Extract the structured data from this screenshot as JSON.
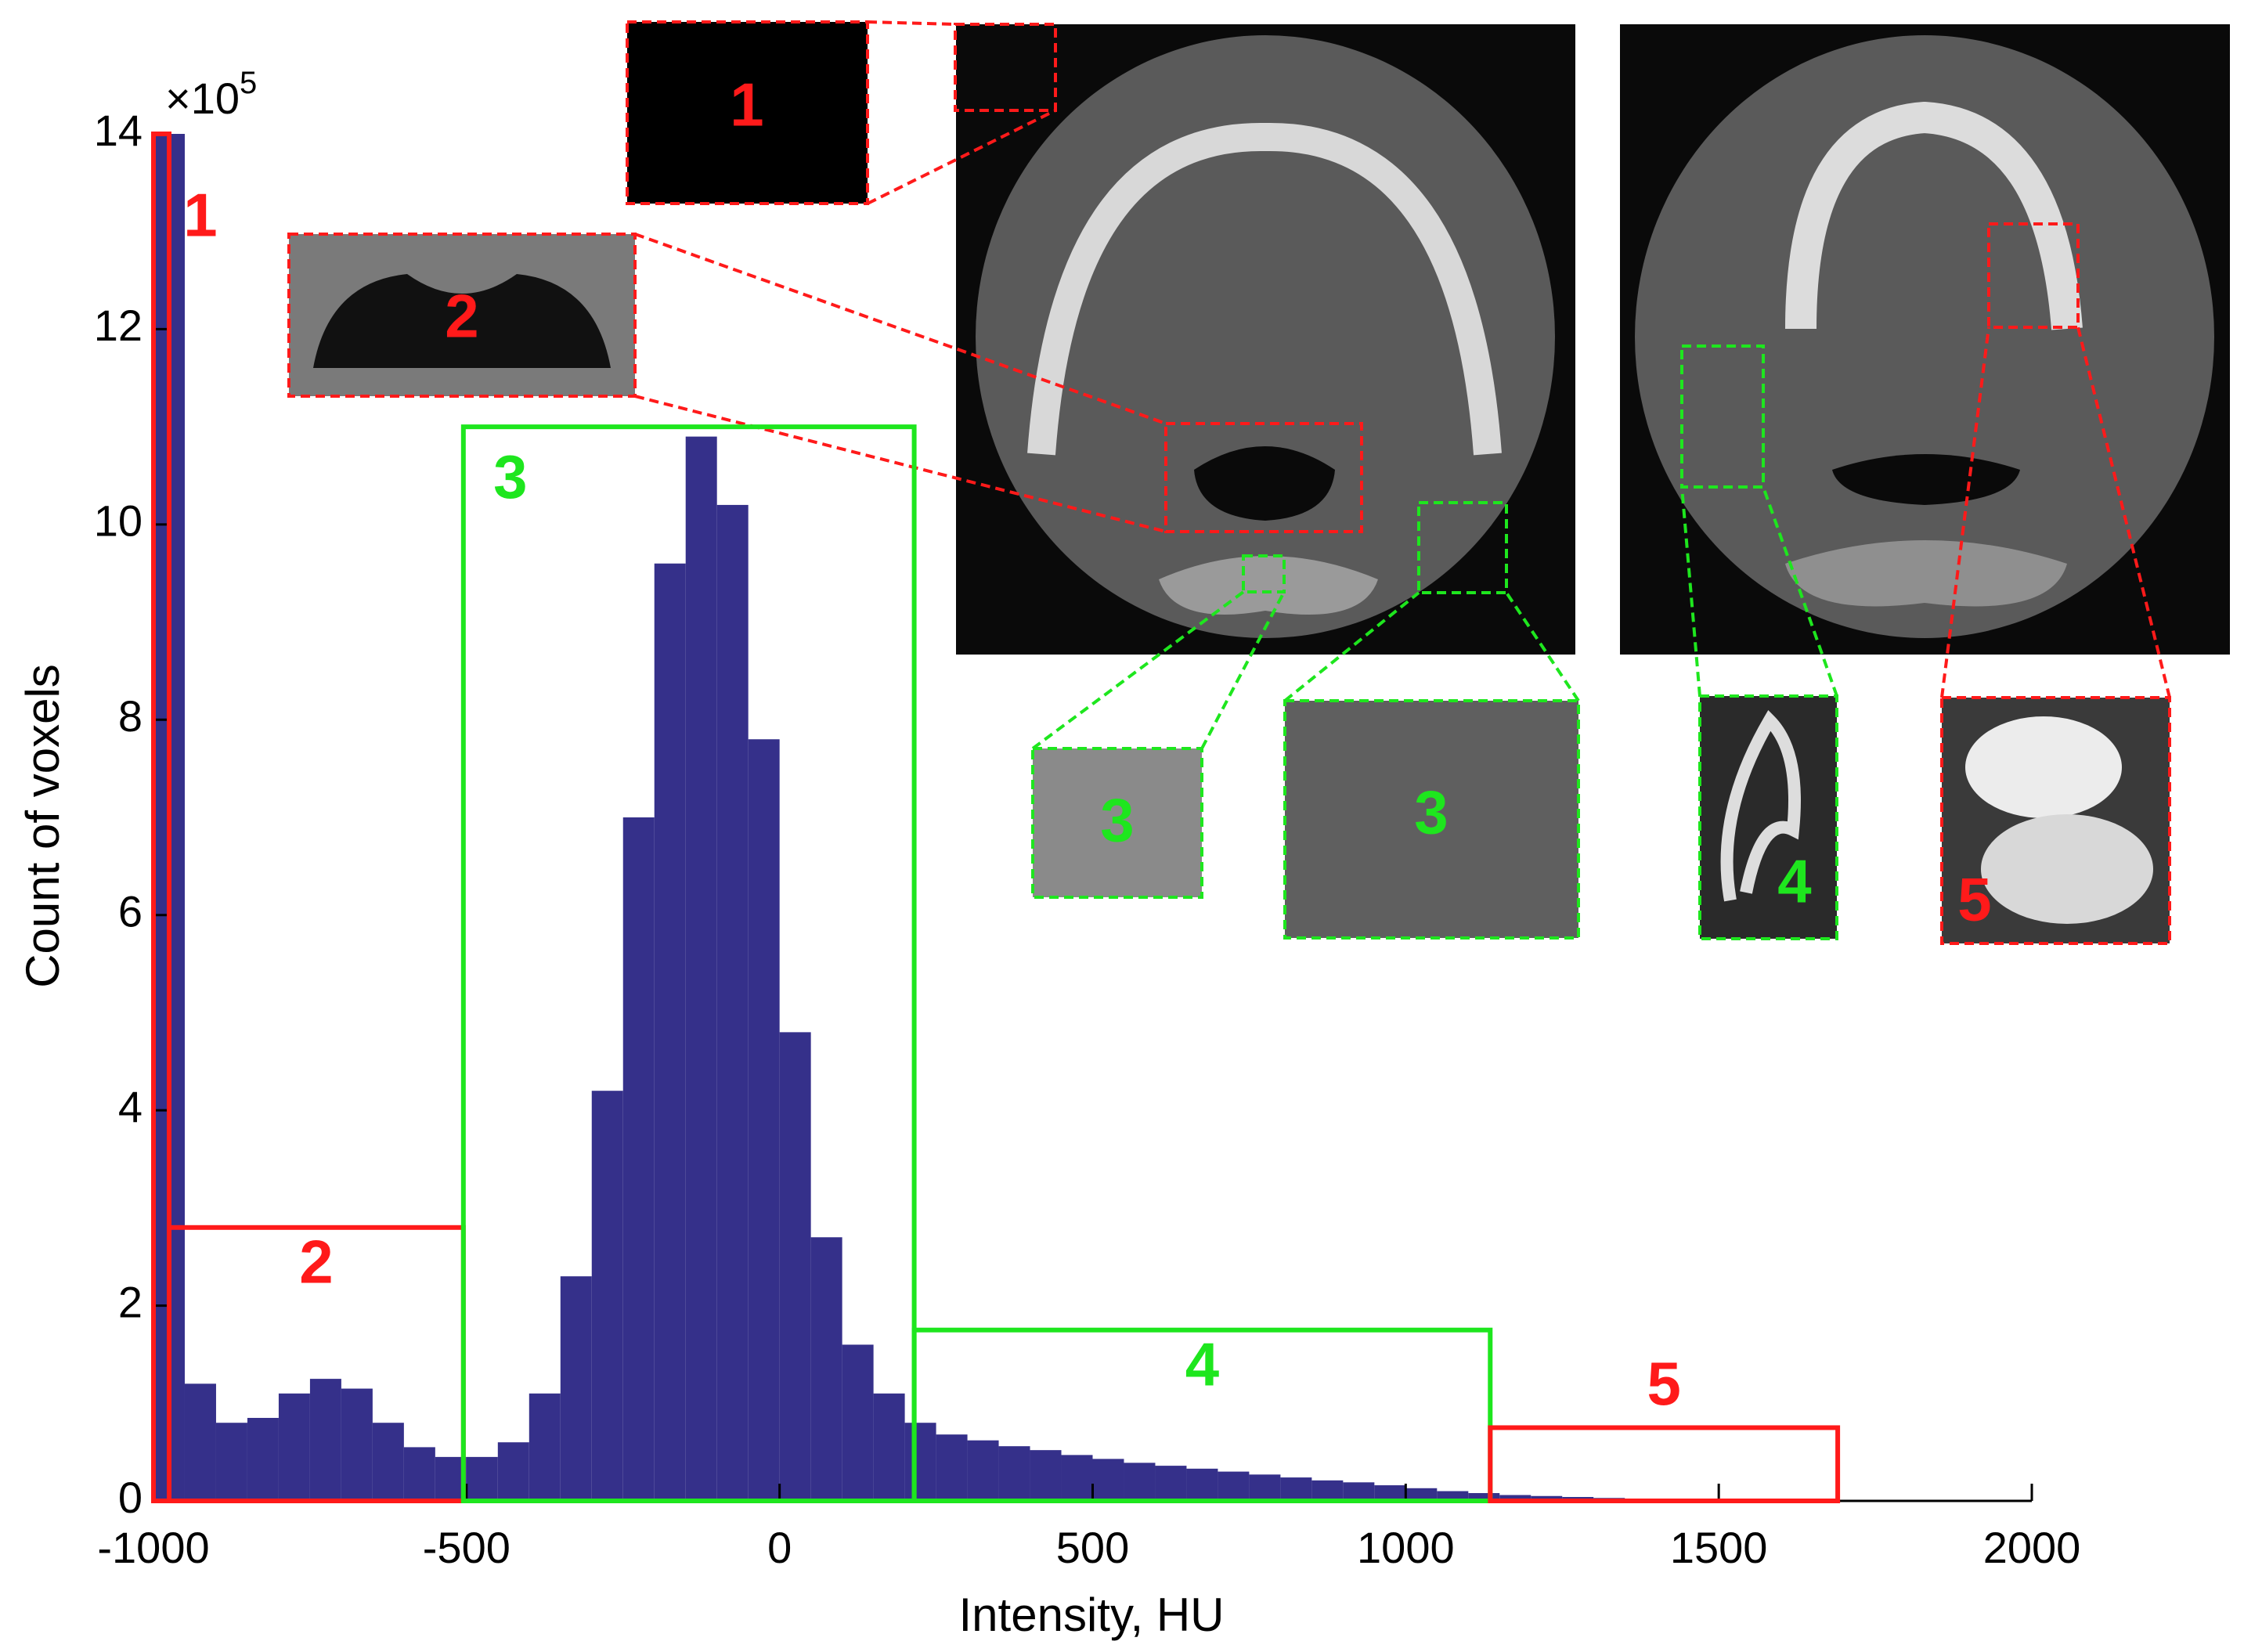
{
  "chart_data": {
    "type": "histogram",
    "xlabel": "Intensity, HU",
    "ylabel": "Count of voxels",
    "y_multiplier": {
      "base": "×10",
      "exponent": "5"
    },
    "bins": [
      -1000,
      -950,
      -900,
      -850,
      -800,
      -750,
      -700,
      -650,
      -600,
      -550,
      -500,
      -450,
      -400,
      -350,
      -300,
      -250,
      -200,
      -150,
      -100,
      -50,
      0,
      50,
      100,
      150,
      200,
      250,
      300,
      350,
      400,
      450,
      500,
      550,
      600,
      650,
      700,
      750,
      800,
      850,
      900,
      950,
      1000,
      1050,
      1100,
      1150,
      1200,
      1250,
      1300,
      1350,
      1400,
      1450,
      1500,
      1550,
      1600,
      1650,
      1700,
      1750,
      1800,
      1850,
      1900,
      1950,
      2000
    ],
    "values": [
      14,
      1.2,
      0.8,
      0.85,
      1.1,
      1.25,
      1.15,
      0.8,
      0.55,
      0.45,
      0.45,
      0.6,
      1.1,
      2.3,
      4.2,
      7.0,
      9.6,
      10.9,
      10.2,
      7.8,
      4.8,
      2.7,
      1.6,
      1.1,
      0.8,
      0.68,
      0.62,
      0.56,
      0.52,
      0.47,
      0.43,
      0.39,
      0.36,
      0.33,
      0.3,
      0.27,
      0.24,
      0.21,
      0.19,
      0.16,
      0.13,
      0.1,
      0.08,
      0.06,
      0.05,
      0.04,
      0.03,
      0.02,
      0.015,
      0.01,
      0.01,
      0.008,
      0.006,
      0.005,
      0.004,
      0.003,
      0.003,
      0.002,
      0.002,
      0.002
    ],
    "color": "#35308a",
    "xlim": [
      -1000,
      2000
    ],
    "ylim": [
      0,
      14
    ],
    "xticks": [
      -1000,
      -500,
      0,
      500,
      1000,
      1500,
      2000
    ],
    "yticks": [
      0,
      2,
      4,
      6,
      8,
      10,
      12,
      14
    ],
    "regions": [
      {
        "label": "1",
        "x": [
          -1000,
          -975
        ],
        "height": 14,
        "color": "#ff1a1a"
      },
      {
        "label": "2",
        "x": [
          -975,
          -505
        ],
        "height": 2.8,
        "color": "#ff1a1a"
      },
      {
        "label": "3",
        "x": [
          -505,
          215
        ],
        "height": 11,
        "color": "#1ee61e"
      },
      {
        "label": "4",
        "x": [
          215,
          1135
        ],
        "height": 1.75,
        "color": "#1ee61e"
      },
      {
        "label": "5",
        "x": [
          1135,
          1690
        ],
        "height": 0.75,
        "color": "#ff1a1a"
      }
    ]
  },
  "insets": [
    {
      "label": "1"
    },
    {
      "label": "2"
    },
    {
      "label": "3"
    },
    {
      "label": "3"
    },
    {
      "label": "4"
    },
    {
      "label": "5"
    }
  ]
}
